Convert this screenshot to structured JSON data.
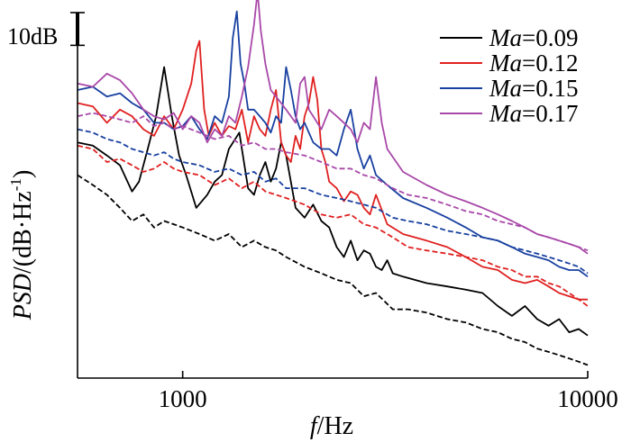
{
  "chart_data": {
    "type": "line",
    "xscale": "log",
    "xlim": [
      550,
      10000
    ],
    "xticks": [
      1000,
      10000
    ],
    "xtick_labels": [
      "1000",
      "10000"
    ],
    "xlabel_italic": "f",
    "xlabel_rest": "/Hz",
    "ylabel_italic": "PSD",
    "ylabel_rest": "/(dB·Hz",
    "ylabel_sup": "-1",
    "ylabel_close": ")",
    "scale_bar_label": "10dB",
    "scale_bar_db": 10,
    "ylim_db": [
      0,
      110
    ],
    "legend_prefix": "Ma",
    "series": [
      {
        "name": "=0.09",
        "color": "#000000",
        "style": "solid",
        "x": [
          550,
          600,
          650,
          700,
          750,
          780,
          820,
          860,
          900,
          940,
          980,
          1020,
          1080,
          1150,
          1200,
          1250,
          1300,
          1380,
          1450,
          1500,
          1550,
          1600,
          1650,
          1700,
          1750,
          1800,
          1900,
          2000,
          2100,
          2200,
          2300,
          2400,
          2500,
          2600,
          2700,
          2800,
          2900,
          3000,
          3100,
          3200,
          3300,
          3500,
          4000,
          4500,
          5000,
          5500,
          6000,
          6500,
          7000,
          7500,
          8000,
          8500,
          9000,
          9500,
          10000
        ],
        "y": [
          72,
          71,
          68,
          65,
          57,
          60,
          70,
          80,
          95,
          80,
          68,
          62,
          52,
          56,
          60,
          62,
          70,
          75,
          58,
          56,
          62,
          66,
          60,
          64,
          72,
          68,
          52,
          49,
          53,
          48,
          46,
          40,
          37,
          42,
          36,
          39,
          38,
          34,
          33,
          36,
          32,
          31,
          29,
          28,
          27,
          26,
          22,
          19,
          22,
          18,
          16,
          18,
          14,
          15,
          13
        ]
      },
      {
        "name": "=0.12",
        "color": "#e02020",
        "style": "solid",
        "x": [
          550,
          600,
          650,
          700,
          750,
          800,
          850,
          900,
          950,
          1000,
          1050,
          1080,
          1100,
          1130,
          1160,
          1200,
          1250,
          1300,
          1350,
          1400,
          1450,
          1500,
          1550,
          1600,
          1650,
          1700,
          1750,
          1800,
          1850,
          1900,
          1950,
          2000,
          2050,
          2100,
          2150,
          2200,
          2250,
          2300,
          2400,
          2500,
          2600,
          2700,
          2800,
          2900,
          3000,
          3200,
          3500,
          4000,
          4500,
          5000,
          5500,
          6000,
          6500,
          7000,
          7500,
          8000,
          8500,
          9000,
          9500,
          10000
        ],
        "y": [
          84,
          83,
          78,
          82,
          80,
          76,
          74,
          80,
          76,
          82,
          90,
          100,
          103,
          82,
          74,
          78,
          74,
          77,
          76,
          82,
          72,
          80,
          76,
          74,
          82,
          88,
          72,
          68,
          66,
          74,
          70,
          80,
          84,
          92,
          85,
          70,
          66,
          60,
          58,
          54,
          57,
          56,
          52,
          50,
          56,
          47,
          44,
          42,
          40,
          37,
          34,
          33,
          30,
          29,
          30,
          28,
          26,
          25,
          24,
          24
        ]
      },
      {
        "name": "=0.15",
        "color": "#1840a0",
        "style": "solid",
        "x": [
          550,
          600,
          650,
          700,
          750,
          800,
          850,
          900,
          950,
          1000,
          1050,
          1100,
          1150,
          1200,
          1250,
          1300,
          1330,
          1360,
          1390,
          1420,
          1450,
          1500,
          1550,
          1600,
          1650,
          1700,
          1750,
          1800,
          1850,
          1900,
          1950,
          2000,
          2100,
          2200,
          2300,
          2400,
          2500,
          2600,
          2700,
          2800,
          2900,
          3000,
          3200,
          3500,
          4000,
          4500,
          5000,
          5500,
          6000,
          6500,
          7000,
          7500,
          8000,
          8500,
          9000,
          9500,
          10000
        ],
        "y": [
          88,
          89,
          86,
          87,
          84,
          82,
          78,
          78,
          76,
          77,
          80,
          76,
          73,
          80,
          78,
          86,
          104,
          112,
          96,
          90,
          82,
          82,
          80,
          78,
          75,
          80,
          78,
          95,
          88,
          80,
          76,
          78,
          72,
          70,
          70,
          68,
          76,
          82,
          70,
          64,
          68,
          62,
          59,
          55,
          52,
          49,
          46,
          43,
          42,
          40,
          38,
          37,
          36,
          34,
          33,
          33,
          31
        ]
      },
      {
        "name": "=0.17",
        "color": "#a848a8",
        "style": "solid",
        "x": [
          550,
          600,
          650,
          700,
          750,
          800,
          850,
          900,
          950,
          1000,
          1050,
          1100,
          1150,
          1200,
          1250,
          1300,
          1350,
          1400,
          1450,
          1500,
          1530,
          1560,
          1600,
          1650,
          1700,
          1750,
          1800,
          1850,
          1900,
          1950,
          2000,
          2050,
          2100,
          2150,
          2200,
          2300,
          2400,
          2500,
          2600,
          2700,
          2800,
          2900,
          3000,
          3100,
          3200,
          3500,
          4000,
          4500,
          5000,
          5500,
          6000,
          6500,
          7000,
          7500,
          8000,
          8500,
          9000,
          9500,
          10000
        ],
        "y": [
          90,
          89,
          93,
          91,
          87,
          82,
          80,
          79,
          81,
          76,
          80,
          78,
          72,
          76,
          74,
          80,
          78,
          86,
          95,
          108,
          118,
          106,
          96,
          88,
          86,
          84,
          82,
          80,
          78,
          90,
          92,
          82,
          80,
          78,
          76,
          82,
          80,
          78,
          76,
          72,
          78,
          76,
          92,
          78,
          70,
          63,
          59,
          56,
          54,
          52,
          50,
          48,
          46,
          44,
          43,
          42,
          41,
          40,
          38
        ]
      },
      {
        "name": "0.09 (dashed)",
        "color": "#000000",
        "style": "dashed",
        "in_legend": false,
        "x": [
          550,
          600,
          650,
          700,
          750,
          800,
          850,
          900,
          950,
          1000,
          1100,
          1200,
          1300,
          1400,
          1500,
          1600,
          1700,
          1800,
          2000,
          2200,
          2400,
          2600,
          2800,
          3000,
          3300,
          3600,
          4000,
          4500,
          5000,
          5500,
          6000,
          6500,
          7000,
          7500,
          8000,
          8500,
          9000,
          9500,
          10000
        ],
        "y": [
          62,
          59,
          56,
          52,
          48,
          50,
          46,
          48,
          47,
          46,
          44,
          42,
          44,
          40,
          42,
          40,
          39,
          37,
          34,
          32,
          30,
          29,
          25,
          26,
          21,
          21,
          20,
          18,
          17,
          15,
          14,
          12,
          11,
          9,
          8,
          7,
          6,
          5,
          4
        ]
      },
      {
        "name": "0.12 (dashed)",
        "color": "#e02020",
        "style": "dashed",
        "in_legend": false,
        "x": [
          550,
          600,
          650,
          700,
          750,
          800,
          850,
          900,
          950,
          1000,
          1100,
          1200,
          1300,
          1400,
          1500,
          1600,
          1700,
          1800,
          2000,
          2200,
          2400,
          2600,
          2800,
          3000,
          3300,
          3600,
          4000,
          4500,
          5000,
          5500,
          6000,
          6500,
          7000,
          7500,
          8000,
          8500,
          9000,
          9500,
          10000
        ],
        "y": [
          71,
          70,
          66,
          67,
          65,
          63,
          64,
          66,
          64,
          63,
          62,
          59,
          61,
          58,
          60,
          57,
          56,
          55,
          53,
          50,
          49,
          50,
          47,
          46,
          43,
          40,
          39,
          38,
          37,
          36,
          34,
          33,
          31,
          31,
          29,
          28,
          26,
          24,
          22
        ]
      },
      {
        "name": "0.15 (dashed)",
        "color": "#1840a0",
        "style": "dashed",
        "in_legend": false,
        "x": [
          550,
          600,
          650,
          700,
          750,
          800,
          850,
          900,
          950,
          1000,
          1100,
          1200,
          1300,
          1400,
          1500,
          1600,
          1700,
          1800,
          2000,
          2200,
          2400,
          2600,
          2800,
          3000,
          3300,
          3600,
          4000,
          4500,
          5000,
          5500,
          6000,
          6500,
          7000,
          7500,
          8000,
          8500,
          9000,
          9500,
          10000
        ],
        "y": [
          76,
          75,
          73,
          72,
          70,
          69,
          68,
          69,
          67,
          66,
          65,
          63,
          64,
          62,
          63,
          60,
          61,
          58,
          58,
          56,
          55,
          54,
          53,
          52,
          49,
          48,
          47,
          45,
          44,
          43,
          42,
          40,
          39,
          38,
          37,
          36,
          35,
          34,
          32
        ]
      },
      {
        "name": "0.17 (dashed)",
        "color": "#a848a8",
        "style": "dashed",
        "in_legend": false,
        "x": [
          550,
          600,
          650,
          700,
          750,
          800,
          850,
          900,
          950,
          1000,
          1100,
          1200,
          1300,
          1400,
          1500,
          1600,
          1700,
          1800,
          2000,
          2200,
          2400,
          2600,
          2800,
          3000,
          3300,
          3600,
          4000,
          4500,
          5000,
          5500,
          6000,
          6500,
          7000,
          7500,
          8000,
          8500,
          9000,
          9500,
          10000
        ],
        "y": [
          80,
          81,
          80,
          79,
          78,
          80,
          77,
          78,
          76,
          77,
          75,
          73,
          74,
          71,
          72,
          70,
          70,
          69,
          68,
          66,
          64,
          64,
          62,
          61,
          58,
          56,
          55,
          53,
          51,
          50,
          48,
          47,
          46,
          44,
          43,
          42,
          41,
          40,
          39
        ]
      }
    ]
  }
}
